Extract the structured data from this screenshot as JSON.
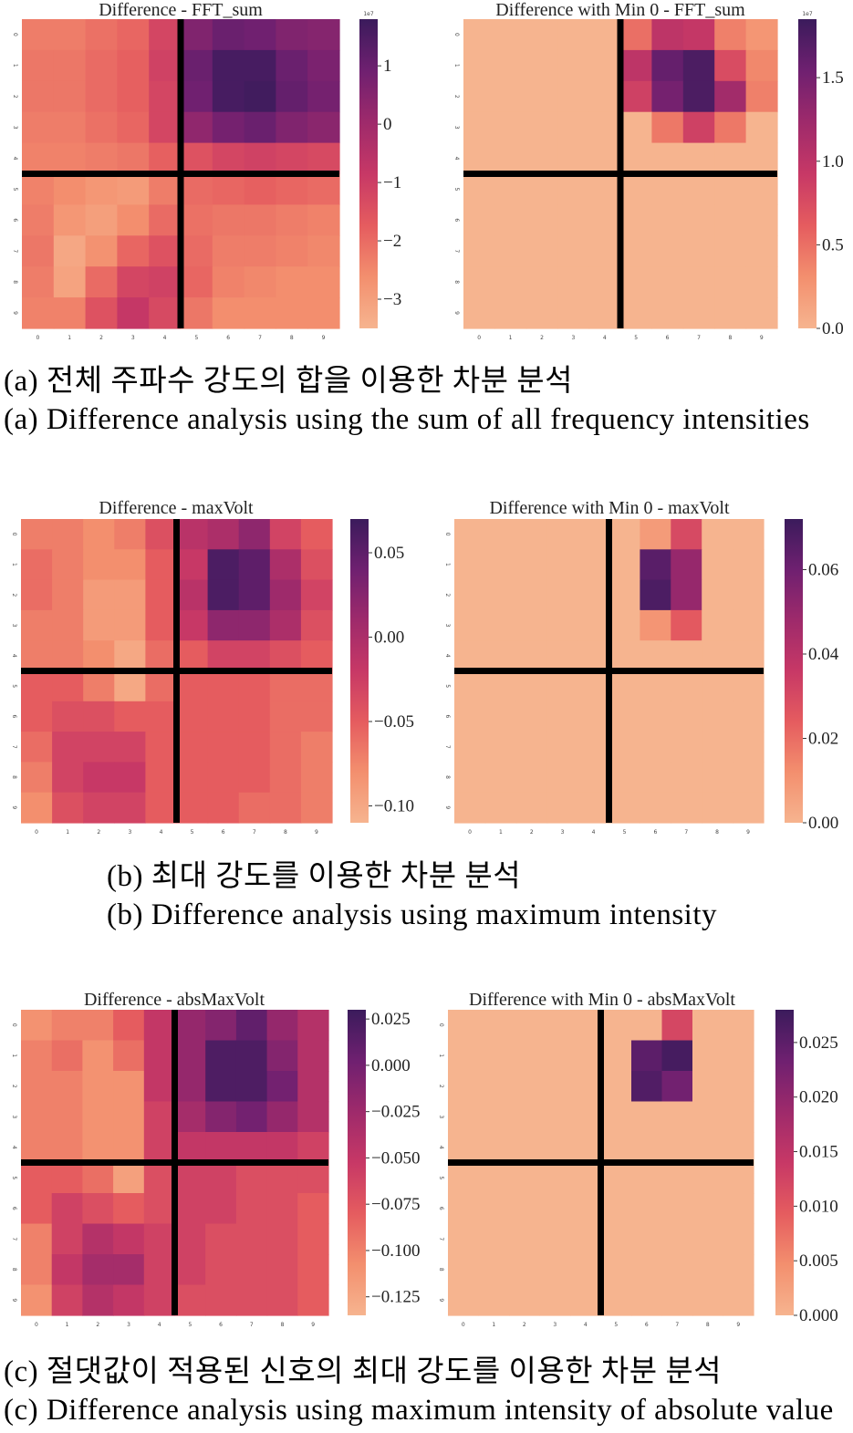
{
  "captions": {
    "a_ko": "(a) 전체 주파수 강도의 합을 이용한 차분 분석",
    "a_en": "(a) Difference analysis using the sum of all frequency intensities",
    "b_ko": "(b) 최대 강도를 이용한 차분 분석",
    "b_en": "(b) Difference analysis using maximum intensity",
    "c_ko": "(c) 절댓값이 적용된 신호의 최대 강도를 이용한 차분 분석",
    "c_en": "(c) Difference analysis using maximum intensity of absolute value"
  },
  "colormap": [
    "#f6b48f",
    "#f38f6e",
    "#e55c5f",
    "#c73866",
    "#9e2a6b",
    "#6f2070",
    "#3b1b5c"
  ],
  "divider_color": "#000000",
  "chart_data": [
    {
      "type": "heatmap",
      "title": "Difference - FFT_sum",
      "x_ticks": [
        "0",
        "1",
        "2",
        "3",
        "4",
        "5",
        "6",
        "7",
        "8",
        "9"
      ],
      "y_ticks": [
        "0",
        "1",
        "2",
        "3",
        "4",
        "5",
        "6",
        "7",
        "8",
        "9"
      ],
      "colorbar": {
        "min": -3.5,
        "max": 1.8,
        "ticks": [
          1,
          0,
          -1,
          -2,
          -3
        ],
        "tick_labels": [
          "1",
          "0",
          "−1",
          "−2",
          "−3"
        ],
        "offset_label": "1e7"
      },
      "divider": {
        "vertical_after_col": 4.5,
        "horizontal_after_row": 4.5
      },
      "values": [
        [
          -2.3,
          -2.3,
          -2.1,
          -1.9,
          -1.2,
          0.6,
          1.0,
          0.9,
          0.6,
          0.5
        ],
        [
          -2.2,
          -2.2,
          -2.0,
          -1.8,
          -1.1,
          1.0,
          1.6,
          1.6,
          1.0,
          0.7
        ],
        [
          -2.2,
          -2.2,
          -2.0,
          -1.8,
          -1.2,
          0.9,
          1.6,
          1.7,
          1.1,
          0.8
        ],
        [
          -2.3,
          -2.3,
          -2.1,
          -1.9,
          -1.2,
          0.3,
          0.8,
          1.0,
          0.6,
          0.4
        ],
        [
          -2.4,
          -2.4,
          -2.3,
          -2.2,
          -1.8,
          -1.5,
          -1.2,
          -1.1,
          -1.2,
          -1.3
        ],
        [
          -2.4,
          -2.6,
          -2.8,
          -2.9,
          -2.3,
          -2.0,
          -1.9,
          -1.8,
          -1.9,
          -2.0
        ],
        [
          -2.3,
          -2.8,
          -3.0,
          -2.6,
          -2.0,
          -2.1,
          -2.2,
          -2.2,
          -2.3,
          -2.4
        ],
        [
          -2.2,
          -3.2,
          -2.7,
          -1.9,
          -1.5,
          -2.0,
          -2.3,
          -2.3,
          -2.4,
          -2.5
        ],
        [
          -2.3,
          -3.1,
          -2.0,
          -1.2,
          -1.1,
          -1.9,
          -2.4,
          -2.5,
          -2.6,
          -2.6
        ],
        [
          -2.4,
          -2.4,
          -1.5,
          -0.8,
          -1.3,
          -2.2,
          -2.6,
          -2.6,
          -2.6,
          -2.6
        ]
      ]
    },
    {
      "type": "heatmap",
      "title": "Difference with Min 0 - FFT_sum",
      "x_ticks": [
        "0",
        "1",
        "2",
        "3",
        "4",
        "5",
        "6",
        "7",
        "8",
        "9"
      ],
      "y_ticks": [
        "0",
        "1",
        "2",
        "3",
        "4",
        "5",
        "6",
        "7",
        "8",
        "9"
      ],
      "colorbar": {
        "min": 0,
        "max": 1.85,
        "ticks": [
          1.5,
          1.0,
          0.5,
          0.0
        ],
        "tick_labels": [
          "1.5",
          "1.0",
          "0.5",
          "0.0"
        ],
        "offset_label": "1e7"
      },
      "divider": {
        "vertical_after_col": 4.5,
        "horizontal_after_row": 4.5
      },
      "values": [
        [
          0,
          0,
          0,
          0,
          0,
          0.5,
          1.0,
          0.95,
          0.4,
          0.25
        ],
        [
          0,
          0,
          0,
          0,
          0,
          1.0,
          1.6,
          1.75,
          0.75,
          0.35
        ],
        [
          0,
          0,
          0,
          0,
          0,
          0.85,
          1.5,
          1.75,
          1.2,
          0.4
        ],
        [
          0,
          0,
          0,
          0,
          0,
          0,
          0.45,
          0.85,
          0.45,
          0
        ],
        [
          0,
          0,
          0,
          0,
          0,
          0,
          0,
          0,
          0,
          0
        ],
        [
          0,
          0,
          0,
          0,
          0,
          0,
          0,
          0,
          0,
          0
        ],
        [
          0,
          0,
          0,
          0,
          0,
          0,
          0,
          0,
          0,
          0
        ],
        [
          0,
          0,
          0,
          0,
          0,
          0,
          0,
          0,
          0,
          0
        ],
        [
          0,
          0,
          0,
          0,
          0,
          0,
          0,
          0,
          0,
          0
        ],
        [
          0,
          0,
          0,
          0,
          0,
          0,
          0,
          0,
          0,
          0
        ]
      ]
    },
    {
      "type": "heatmap",
      "title": "Difference - maxVolt",
      "x_ticks": [
        "0",
        "1",
        "2",
        "3",
        "4",
        "5",
        "6",
        "7",
        "8",
        "9"
      ],
      "y_ticks": [
        "0",
        "1",
        "2",
        "3",
        "4",
        "5",
        "6",
        "7",
        "8",
        "9"
      ],
      "colorbar": {
        "min": -0.11,
        "max": 0.07,
        "ticks": [
          0.05,
          0.0,
          -0.05,
          -0.1
        ],
        "tick_labels": [
          "0.05",
          "0.00",
          "−0.05",
          "−0.10"
        ],
        "offset_label": ""
      },
      "divider": {
        "vertical_after_col": 4.5,
        "horizontal_after_row": 4.5
      },
      "values": [
        [
          -0.07,
          -0.07,
          -0.08,
          -0.07,
          -0.04,
          -0.01,
          0.0,
          0.02,
          -0.03,
          -0.05
        ],
        [
          -0.06,
          -0.07,
          -0.08,
          -0.08,
          -0.05,
          -0.02,
          0.06,
          0.05,
          0.0,
          -0.04
        ],
        [
          -0.06,
          -0.07,
          -0.09,
          -0.09,
          -0.05,
          -0.01,
          0.06,
          0.05,
          0.01,
          -0.03
        ],
        [
          -0.07,
          -0.07,
          -0.09,
          -0.09,
          -0.05,
          -0.02,
          0.02,
          0.02,
          0.0,
          -0.04
        ],
        [
          -0.07,
          -0.07,
          -0.08,
          -0.1,
          -0.06,
          -0.05,
          -0.03,
          -0.03,
          -0.04,
          -0.05
        ],
        [
          -0.05,
          -0.05,
          -0.07,
          -0.1,
          -0.06,
          -0.05,
          -0.05,
          -0.05,
          -0.06,
          -0.06
        ],
        [
          -0.05,
          -0.04,
          -0.04,
          -0.05,
          -0.05,
          -0.05,
          -0.05,
          -0.05,
          -0.06,
          -0.06
        ],
        [
          -0.06,
          -0.03,
          -0.03,
          -0.03,
          -0.05,
          -0.05,
          -0.05,
          -0.05,
          -0.06,
          -0.07
        ],
        [
          -0.07,
          -0.03,
          -0.02,
          -0.02,
          -0.05,
          -0.05,
          -0.05,
          -0.05,
          -0.06,
          -0.07
        ],
        [
          -0.08,
          -0.04,
          -0.03,
          -0.03,
          -0.05,
          -0.05,
          -0.05,
          -0.06,
          -0.06,
          -0.07
        ]
      ]
    },
    {
      "type": "heatmap",
      "title": "Difference with Min 0 - maxVolt",
      "x_ticks": [
        "0",
        "1",
        "2",
        "3",
        "4",
        "5",
        "6",
        "7",
        "8",
        "9"
      ],
      "y_ticks": [
        "0",
        "1",
        "2",
        "3",
        "4",
        "5",
        "6",
        "7",
        "8",
        "9"
      ],
      "colorbar": {
        "min": 0,
        "max": 0.072,
        "ticks": [
          0.06,
          0.04,
          0.02,
          0.0
        ],
        "tick_labels": [
          "0.06",
          "0.04",
          "0.02",
          "0.00"
        ],
        "offset_label": ""
      },
      "divider": {
        "vertical_after_col": 4.5,
        "horizontal_after_row": 4.5
      },
      "values": [
        [
          0,
          0,
          0,
          0,
          0,
          0,
          0.008,
          0.03,
          0,
          0
        ],
        [
          0,
          0,
          0,
          0,
          0,
          0,
          0.065,
          0.05,
          0,
          0
        ],
        [
          0,
          0,
          0,
          0,
          0,
          0,
          0.068,
          0.05,
          0,
          0
        ],
        [
          0,
          0,
          0,
          0,
          0,
          0,
          0.01,
          0.025,
          0,
          0
        ],
        [
          0,
          0,
          0,
          0,
          0,
          0,
          0,
          0,
          0,
          0
        ],
        [
          0,
          0,
          0,
          0,
          0,
          0,
          0,
          0,
          0,
          0
        ],
        [
          0,
          0,
          0,
          0,
          0,
          0,
          0,
          0,
          0,
          0
        ],
        [
          0,
          0,
          0,
          0,
          0,
          0,
          0,
          0,
          0,
          0
        ],
        [
          0,
          0,
          0,
          0,
          0,
          0,
          0,
          0,
          0,
          0
        ],
        [
          0,
          0,
          0,
          0,
          0,
          0,
          0,
          0,
          0,
          0
        ]
      ]
    },
    {
      "type": "heatmap",
      "title": "Difference - absMaxVolt",
      "x_ticks": [
        "0",
        "1",
        "2",
        "3",
        "4",
        "5",
        "6",
        "7",
        "8",
        "9"
      ],
      "y_ticks": [
        "0",
        "1",
        "2",
        "3",
        "4",
        "5",
        "6",
        "7",
        "8",
        "9"
      ],
      "colorbar": {
        "min": -0.135,
        "max": 0.03,
        "ticks": [
          0.025,
          0.0,
          -0.025,
          -0.05,
          -0.075,
          -0.1,
          -0.125
        ],
        "tick_labels": [
          "0.025",
          "0.000",
          "−0.025",
          "−0.050",
          "−0.075",
          "−0.100",
          "−0.125"
        ],
        "offset_label": ""
      },
      "divider": {
        "vertical_after_col": 4.5,
        "horizontal_after_row": 4.5
      },
      "values": [
        [
          -0.11,
          -0.1,
          -0.1,
          -0.08,
          -0.05,
          -0.02,
          -0.01,
          0.01,
          -0.02,
          -0.04
        ],
        [
          -0.1,
          -0.09,
          -0.11,
          -0.09,
          -0.05,
          -0.02,
          0.02,
          0.02,
          -0.01,
          -0.04
        ],
        [
          -0.1,
          -0.1,
          -0.11,
          -0.11,
          -0.05,
          -0.02,
          0.02,
          0.02,
          0.0,
          -0.04
        ],
        [
          -0.1,
          -0.1,
          -0.11,
          -0.11,
          -0.06,
          -0.03,
          -0.01,
          0.0,
          -0.02,
          -0.04
        ],
        [
          -0.1,
          -0.1,
          -0.11,
          -0.11,
          -0.06,
          -0.05,
          -0.05,
          -0.05,
          -0.05,
          -0.06
        ],
        [
          -0.08,
          -0.08,
          -0.09,
          -0.12,
          -0.07,
          -0.06,
          -0.06,
          -0.07,
          -0.07,
          -0.07
        ],
        [
          -0.08,
          -0.06,
          -0.07,
          -0.08,
          -0.07,
          -0.06,
          -0.06,
          -0.07,
          -0.07,
          -0.08
        ],
        [
          -0.1,
          -0.06,
          -0.04,
          -0.05,
          -0.06,
          -0.06,
          -0.07,
          -0.07,
          -0.07,
          -0.08
        ],
        [
          -0.1,
          -0.05,
          -0.03,
          -0.03,
          -0.06,
          -0.06,
          -0.07,
          -0.07,
          -0.07,
          -0.08
        ],
        [
          -0.11,
          -0.06,
          -0.04,
          -0.05,
          -0.06,
          -0.07,
          -0.07,
          -0.07,
          -0.07,
          -0.08
        ]
      ]
    },
    {
      "type": "heatmap",
      "title": "Difference with Min 0 - absMaxVolt",
      "x_ticks": [
        "0",
        "1",
        "2",
        "3",
        "4",
        "5",
        "6",
        "7",
        "8",
        "9"
      ],
      "y_ticks": [
        "0",
        "1",
        "2",
        "3",
        "4",
        "5",
        "6",
        "7",
        "8",
        "9"
      ],
      "colorbar": {
        "min": 0,
        "max": 0.028,
        "ticks": [
          0.025,
          0.02,
          0.015,
          0.01,
          0.005,
          0.0
        ],
        "tick_labels": [
          "0.025",
          "0.020",
          "0.015",
          "0.010",
          "0.005",
          "0.000"
        ],
        "offset_label": ""
      },
      "divider": {
        "vertical_after_col": 4.5,
        "horizontal_after_row": 4.5
      },
      "values": [
        [
          0,
          0,
          0,
          0,
          0,
          0,
          0,
          0.012,
          0,
          0
        ],
        [
          0,
          0,
          0,
          0,
          0,
          0,
          0.025,
          0.027,
          0,
          0
        ],
        [
          0,
          0,
          0,
          0,
          0,
          0,
          0.026,
          0.023,
          0,
          0
        ],
        [
          0,
          0,
          0,
          0,
          0,
          0,
          0,
          0,
          0,
          0
        ],
        [
          0,
          0,
          0,
          0,
          0,
          0,
          0,
          0,
          0,
          0
        ],
        [
          0,
          0,
          0,
          0,
          0,
          0,
          0,
          0,
          0,
          0
        ],
        [
          0,
          0,
          0,
          0,
          0,
          0,
          0,
          0,
          0,
          0
        ],
        [
          0,
          0,
          0,
          0,
          0,
          0,
          0,
          0,
          0,
          0
        ],
        [
          0,
          0,
          0,
          0,
          0,
          0,
          0,
          0,
          0,
          0
        ],
        [
          0,
          0,
          0,
          0,
          0,
          0,
          0,
          0,
          0,
          0
        ]
      ]
    }
  ]
}
